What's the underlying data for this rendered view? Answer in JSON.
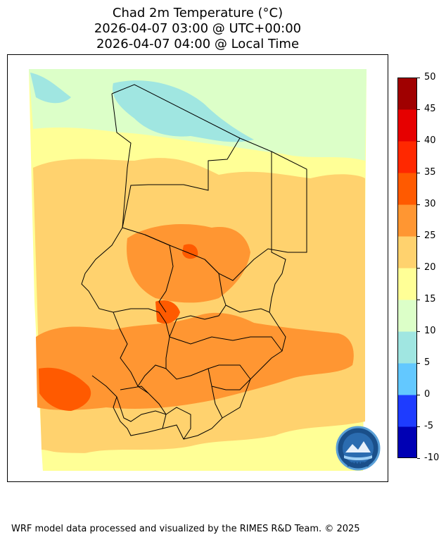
{
  "title": {
    "line1": "Chad 2m Temperature (°C)",
    "line2": "2026-04-07 03:00 @ UTC+00:00",
    "line3": "2026-04-07 04:00 @ Local Time"
  },
  "colorbar": {
    "levels": [
      "-10",
      "-5",
      "0",
      "5",
      "10",
      "15",
      "20",
      "25",
      "30",
      "35",
      "40",
      "45",
      "50"
    ],
    "colors": [
      "#0000b4",
      "#1e3cff",
      "#63c8ff",
      "#a0e6e1",
      "#dcffc8",
      "#ffff96",
      "#ffd26e",
      "#ff9632",
      "#ff5a00",
      "#ff2800",
      "#e60000",
      "#a00000"
    ]
  },
  "map_colors": {
    "cool": "#a0e6e1",
    "mild": "#dcffc8",
    "warm": "#ffff96",
    "hot": "#ffd26e",
    "hotter": "#ff9632",
    "hottest": "#ff5a00",
    "boundary": "#000000"
  },
  "logo": {
    "text": "RIMES"
  },
  "footer": "WRF model data processed and visualized by the RIMES R&D Team. © 2025"
}
